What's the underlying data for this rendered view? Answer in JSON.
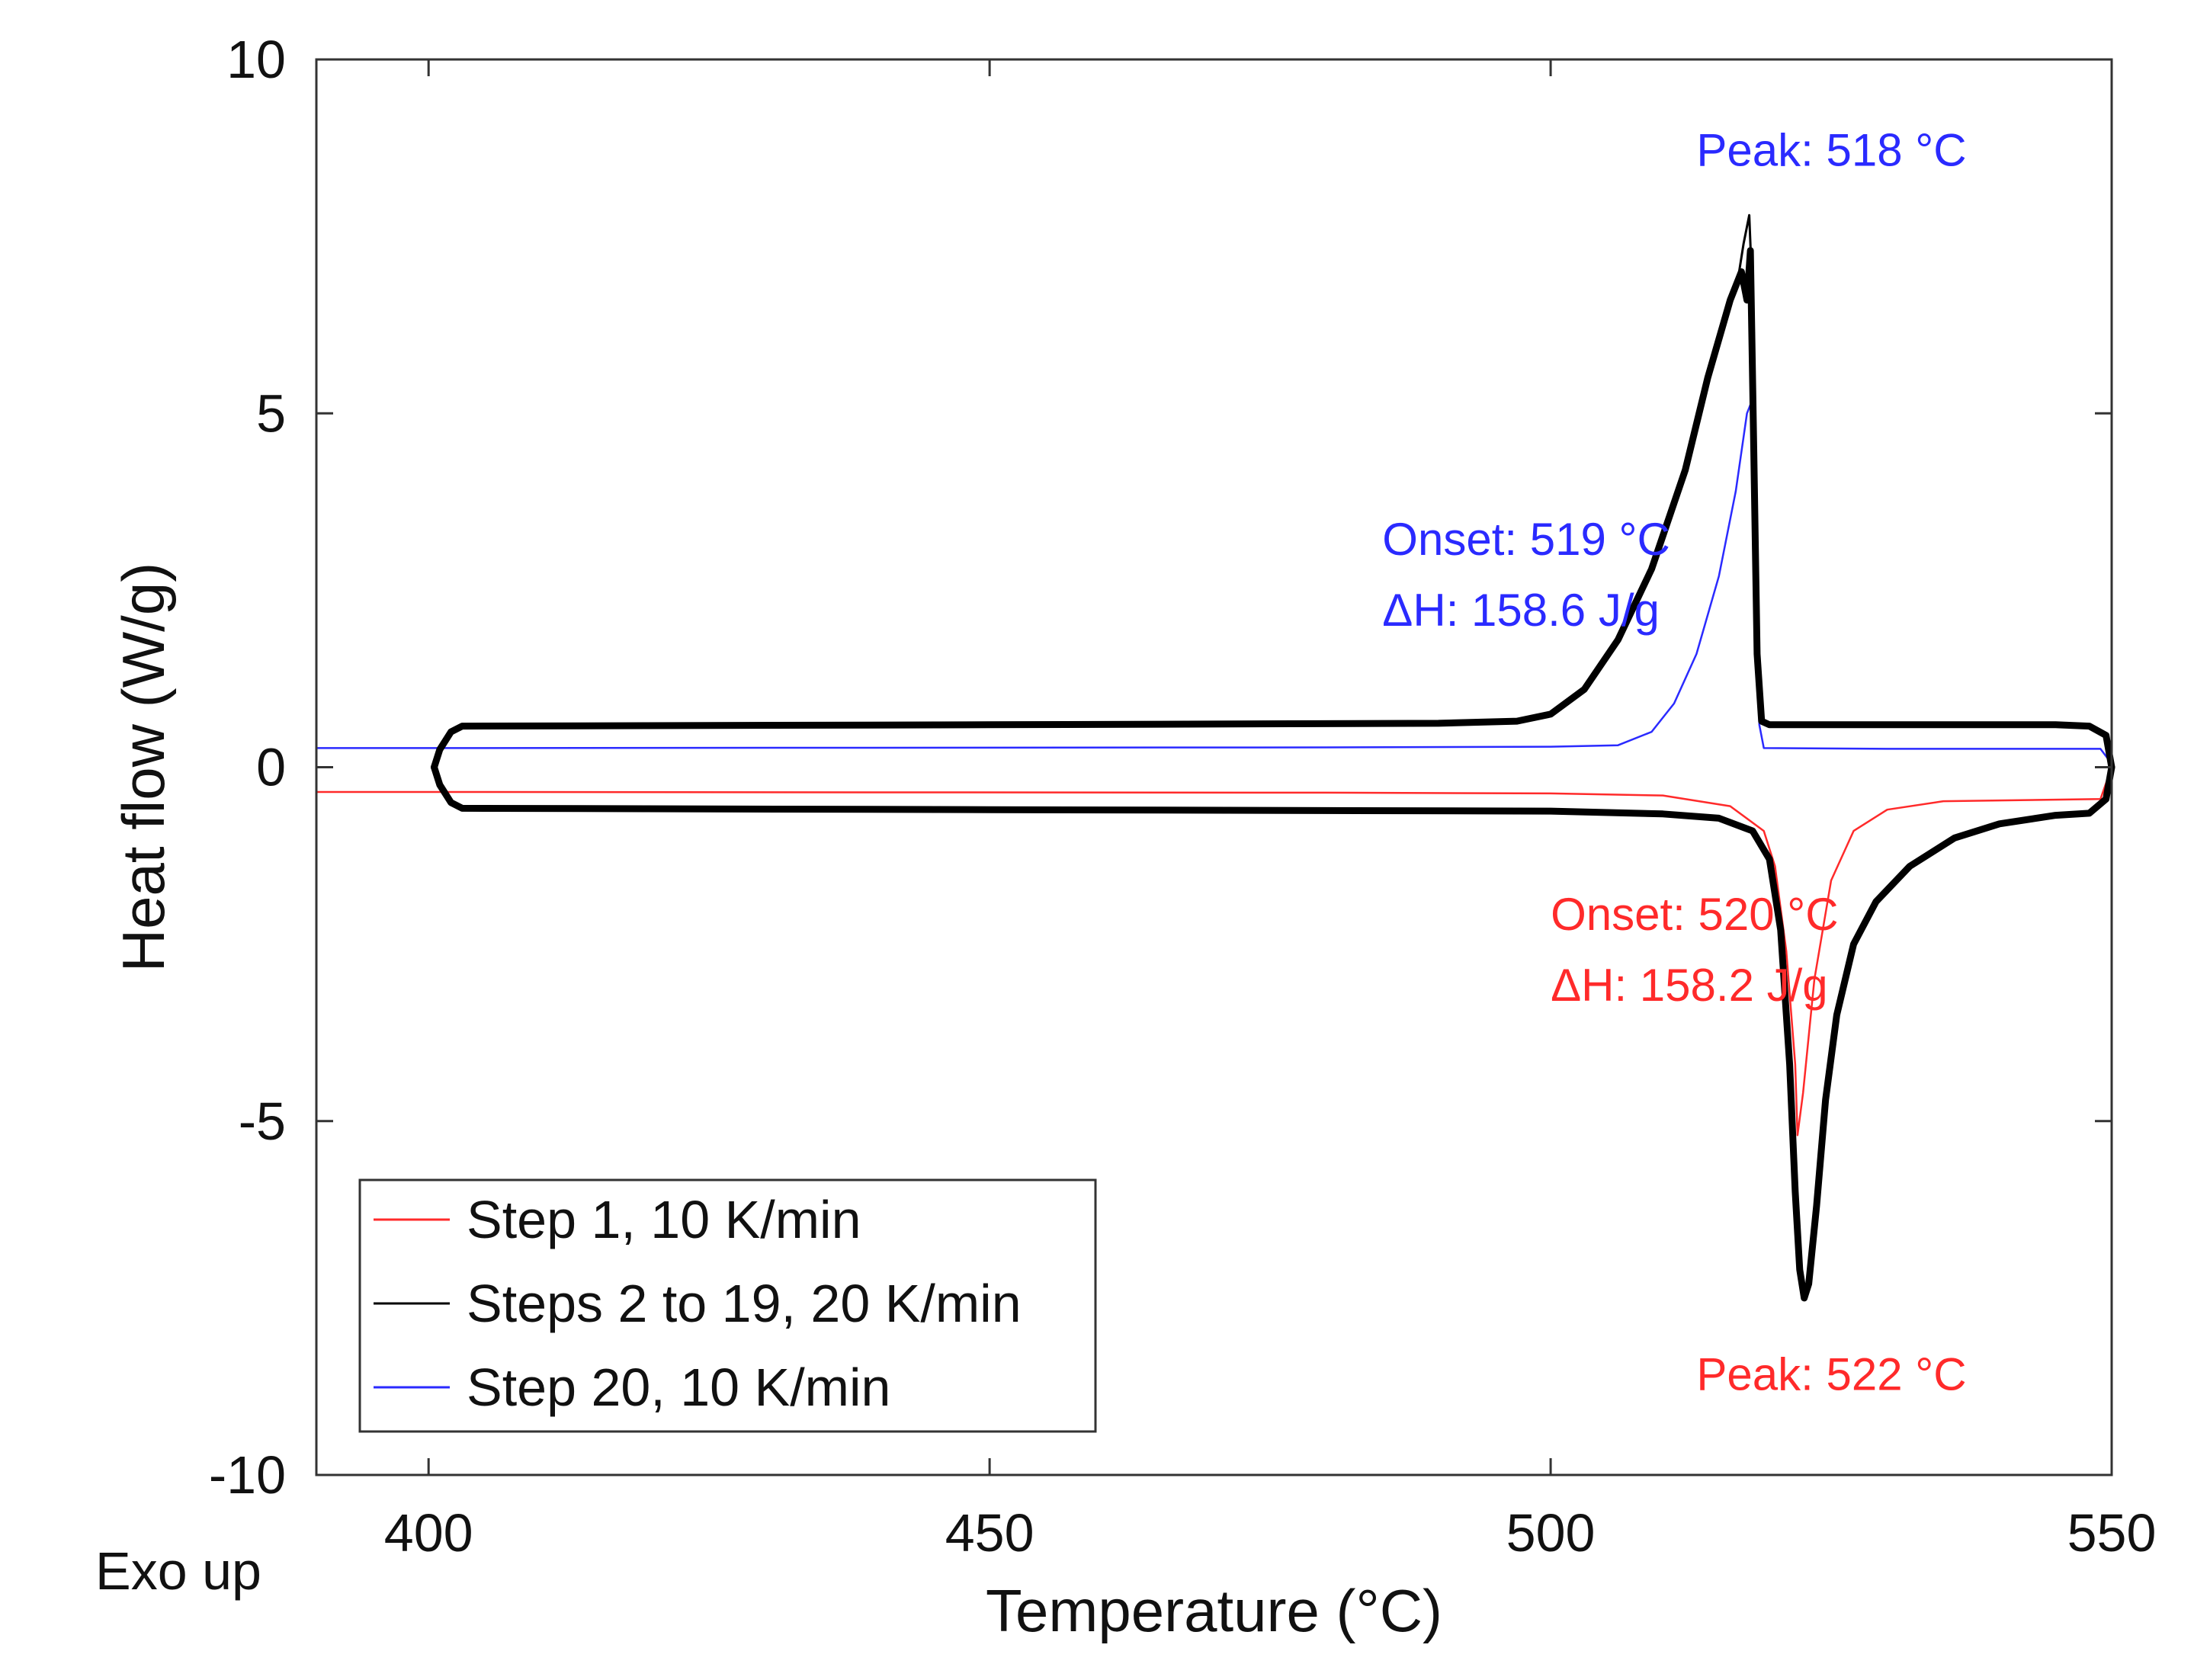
{
  "colors": {
    "step1": "#ff2a2a",
    "steps2to19": "#000000",
    "step20": "#2a2aff",
    "axis": "#333333",
    "text": "#111111"
  },
  "chart_data": {
    "type": "line",
    "title": "",
    "xlabel": "Temperature (°C)",
    "ylabel": "Heat flow (W/g)",
    "corner_label": "Exo up",
    "xlim": [
      390,
      550
    ],
    "ylim": [
      -10,
      10
    ],
    "xticks": [
      400,
      450,
      500,
      550
    ],
    "yticks": [
      -10,
      -5,
      0,
      5,
      10
    ],
    "xtick_labels": [
      "400",
      "450",
      "500",
      "550"
    ],
    "ytick_labels": [
      "-10",
      "-5",
      "0",
      "5",
      "10"
    ],
    "grid": false,
    "legend_position": "bottom-left",
    "legend": [
      {
        "label": "Step 1, 10 K/min",
        "color": "#ff2a2a"
      },
      {
        "label": "Steps 2 to 19, 20 K/min",
        "color": "#000000"
      },
      {
        "label": "Step 20, 10 K/min",
        "color": "#2a2aff"
      }
    ],
    "annotations": {
      "blue_peak": {
        "text": "Peak: 518 °C",
        "color": "#2a2aff",
        "x": 513,
        "y": 8.5
      },
      "blue_onset": {
        "text": "Onset: 519 °C",
        "color": "#2a2aff",
        "x": 485,
        "y": 3.0
      },
      "blue_dh": {
        "text": "ΔH: 158.6 J/g",
        "color": "#2a2aff",
        "x": 485,
        "y": 2.0
      },
      "red_onset": {
        "text": "Onset: 520 °C",
        "color": "#ff2a2a",
        "x": 500,
        "y": -2.3
      },
      "red_dh": {
        "text": "ΔH: 158.2 J/g",
        "color": "#ff2a2a",
        "x": 500,
        "y": -3.3
      },
      "red_peak": {
        "text": "Peak: 522 °C",
        "color": "#ff2a2a",
        "x": 513,
        "y": -8.8
      }
    },
    "series": [
      {
        "name": "Step 20, 10 K/min",
        "color": "#2a2aff",
        "width": 2.5,
        "points": [
          [
            390,
            0.27
          ],
          [
            400,
            0.27
          ],
          [
            480,
            0.28
          ],
          [
            500,
            0.29
          ],
          [
            506,
            0.31
          ],
          [
            509,
            0.5
          ],
          [
            511,
            0.9
          ],
          [
            513,
            1.6
          ],
          [
            515,
            2.7
          ],
          [
            516.5,
            3.9
          ],
          [
            517.5,
            5.0
          ],
          [
            518,
            5.2
          ],
          [
            518.3,
            3.0
          ],
          [
            518.6,
            0.6
          ],
          [
            519,
            0.27
          ],
          [
            530,
            0.26
          ],
          [
            549,
            0.26
          ],
          [
            550,
            0.05
          ]
        ]
      },
      {
        "name": "Step 1, 10 K/min",
        "color": "#ff2a2a",
        "width": 2.5,
        "points": [
          [
            390,
            -0.35
          ],
          [
            400,
            -0.35
          ],
          [
            480,
            -0.36
          ],
          [
            500,
            -0.37
          ],
          [
            510,
            -0.4
          ],
          [
            516,
            -0.55
          ],
          [
            519,
            -0.9
          ],
          [
            520,
            -1.4
          ],
          [
            521,
            -2.6
          ],
          [
            521.8,
            -4.2
          ],
          [
            522,
            -5.2
          ],
          [
            522.5,
            -4.6
          ],
          [
            523.5,
            -3.0
          ],
          [
            525,
            -1.6
          ],
          [
            527,
            -0.9
          ],
          [
            530,
            -0.6
          ],
          [
            535,
            -0.48
          ],
          [
            549,
            -0.45
          ],
          [
            550,
            0.0
          ]
        ]
      },
      {
        "name": "Steps 2 to 19, 20 K/min (heating)",
        "color": "#000000",
        "width": 9,
        "points": [
          [
            400.5,
            0.0
          ],
          [
            401,
            0.25
          ],
          [
            402,
            0.5
          ],
          [
            403,
            0.58
          ],
          [
            450,
            0.6
          ],
          [
            490,
            0.62
          ],
          [
            497,
            0.65
          ],
          [
            500,
            0.75
          ],
          [
            503,
            1.1
          ],
          [
            506,
            1.8
          ],
          [
            509,
            2.8
          ],
          [
            512,
            4.2
          ],
          [
            514,
            5.5
          ],
          [
            516,
            6.6
          ],
          [
            517,
            7.0
          ],
          [
            517.5,
            6.6
          ],
          [
            517.8,
            7.3
          ],
          [
            518.1,
            4.5
          ],
          [
            518.4,
            1.6
          ],
          [
            518.8,
            0.65
          ],
          [
            519.5,
            0.6
          ],
          [
            545,
            0.6
          ],
          [
            548,
            0.58
          ],
          [
            549.5,
            0.45
          ],
          [
            550,
            0.0
          ]
        ]
      },
      {
        "name": "Steps 2 to 19, 20 K/min (cooling)",
        "color": "#000000",
        "width": 9,
        "points": [
          [
            400.5,
            0.0
          ],
          [
            401,
            -0.25
          ],
          [
            402,
            -0.5
          ],
          [
            403,
            -0.58
          ],
          [
            450,
            -0.6
          ],
          [
            500,
            -0.62
          ],
          [
            510,
            -0.66
          ],
          [
            515,
            -0.72
          ],
          [
            518,
            -0.9
          ],
          [
            519.5,
            -1.3
          ],
          [
            520.5,
            -2.3
          ],
          [
            521.3,
            -4.2
          ],
          [
            521.8,
            -6.0
          ],
          [
            522.2,
            -7.1
          ],
          [
            522.6,
            -7.5
          ],
          [
            523,
            -7.3
          ],
          [
            523.7,
            -6.2
          ],
          [
            524.5,
            -4.7
          ],
          [
            525.5,
            -3.5
          ],
          [
            527,
            -2.5
          ],
          [
            529,
            -1.9
          ],
          [
            532,
            -1.4
          ],
          [
            536,
            -1.0
          ],
          [
            540,
            -0.8
          ],
          [
            545,
            -0.68
          ],
          [
            548,
            -0.65
          ],
          [
            549.5,
            -0.45
          ],
          [
            550,
            0.0
          ]
        ]
      },
      {
        "name": "Steps 2 to 19, 20 K/min (peak spikes)",
        "color": "#000000",
        "width": 3,
        "points": [
          [
            516.6,
            6.8
          ],
          [
            517.2,
            7.4
          ],
          [
            517.7,
            7.8
          ],
          [
            518.1,
            6.2
          ],
          [
            518.3,
            3.0
          ]
        ]
      }
    ]
  }
}
